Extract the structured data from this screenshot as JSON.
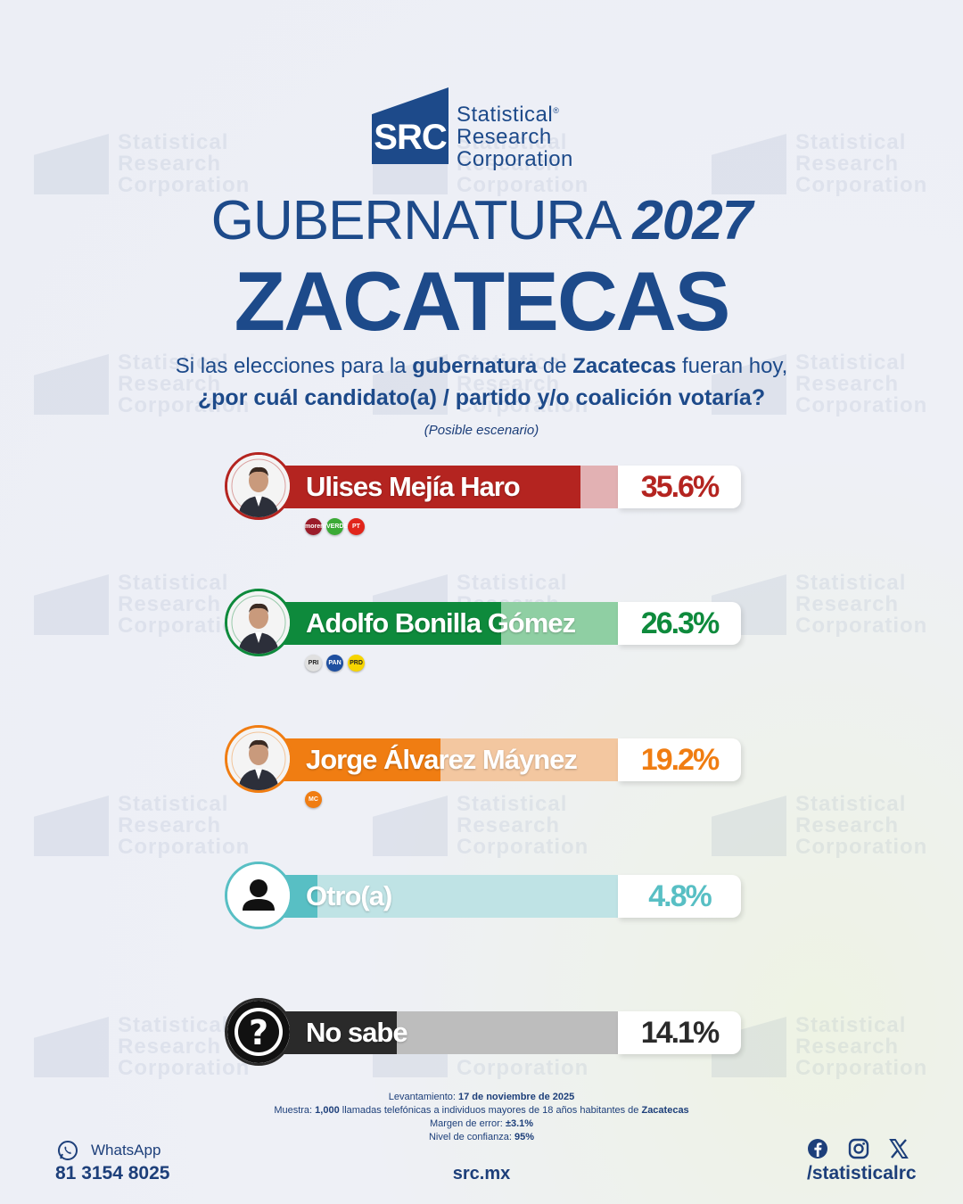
{
  "brand": {
    "logo_text": "SRC",
    "name_lines": [
      "Statistical",
      "Research",
      "Corporation"
    ],
    "trademark": "®"
  },
  "title": {
    "line1": "GUBERNATURA",
    "year": "2027",
    "state": "ZACATECAS"
  },
  "question": {
    "p1": "Si las elecciones para la ",
    "p1_bold": "gubernatura",
    "p1_mid": " de ",
    "p1_bold2": "Zacatecas",
    "p1_end": " fueran hoy,",
    "line2": "¿por cuál candidato(a) / partido y/o coalición votaría?",
    "note": "(Posible escenario)"
  },
  "chart_data": {
    "type": "bar",
    "categories": [
      "Ulises Mejía Haro",
      "Adolfo Bonilla Gómez",
      "Jorge Álvarez Máynez",
      "Otro(a)",
      "No sabe"
    ],
    "values": [
      35.6,
      26.3,
      19.2,
      4.8,
      14.1
    ],
    "value_labels": [
      "35.6%",
      "26.3%",
      "19.2%",
      "4.8%",
      "14.1%"
    ],
    "unit": "%",
    "xlim": [
      0,
      40
    ],
    "colors": {
      "dark": [
        "#b42420",
        "#0e8a3c",
        "#f07d12",
        "#58bfc4",
        "#2a2a2a"
      ],
      "light": [
        "#e2b1b3",
        "#8fcfa3",
        "#f3c7a0",
        "#bfe3e5",
        "#bdbdbd"
      ],
      "pct_text": [
        "#b42420",
        "#0e8a3c",
        "#f07d12",
        "#58bfc4",
        "#2a2a2a"
      ]
    },
    "parties": [
      [
        {
          "label": "morena",
          "color": "#9b1c2a"
        },
        {
          "label": "VERDE",
          "color": "#3aaa35"
        },
        {
          "label": "PT",
          "color": "#e1251b"
        }
      ],
      [
        {
          "label": "PRI",
          "color": "#e0e0e0"
        },
        {
          "label": "PAN",
          "color": "#1e4fa0"
        },
        {
          "label": "PRD",
          "color": "#f6d500"
        }
      ],
      [
        {
          "label": "MC",
          "color": "#f07d12"
        }
      ],
      [],
      []
    ],
    "icons": [
      "candidate-photo",
      "candidate-photo",
      "candidate-photo",
      "person-icon",
      "question-icon"
    ]
  },
  "methodology": {
    "fieldwork_label": "Levantamiento:",
    "fieldwork_value": "17 de noviembre de 2025",
    "sample_label": "Muestra:",
    "sample_value": "1,000",
    "sample_mid": " llamadas telefónicas a individuos mayores de 18 años habitantes de ",
    "sample_place": "Zacatecas",
    "error_label": "Margen de error:",
    "error_value": "±3.1%",
    "confidence_label": "Nivel de confianza:",
    "confidence_value": "95%"
  },
  "contact": {
    "whatsapp_label": "WhatsApp",
    "phone": "81 3154 8025",
    "website": "src.mx",
    "social_handle": "/statisticalrc",
    "social_icons": [
      "facebook-icon",
      "instagram-icon",
      "x-icon"
    ]
  }
}
